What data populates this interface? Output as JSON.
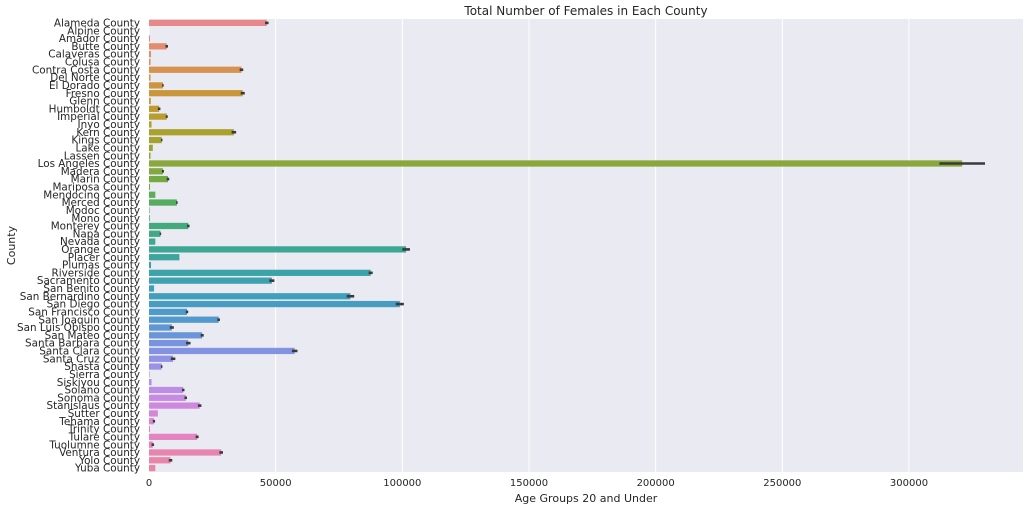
{
  "chart_data": {
    "type": "bar",
    "orientation": "horizontal",
    "title": "Total Number of Females in Each County",
    "xlabel": "Age Groups 20 and Under",
    "ylabel": "County",
    "xlim": [
      0,
      345000
    ],
    "xticks": [
      0,
      50000,
      100000,
      150000,
      200000,
      250000,
      300000
    ],
    "grid": true,
    "legend": "none",
    "categories": [
      "Alameda County",
      "Alpine County",
      "Amador County",
      "Butte County",
      "Calaveras County",
      "Colusa County",
      "Contra Costa County",
      "Del Norte County",
      "El Dorado County",
      "Fresno County",
      "Glenn County",
      "Humboldt County",
      "Imperial County",
      "Inyo County",
      "Kern County",
      "Kings County",
      "Lake County",
      "Lassen County",
      "Los Angeles County",
      "Madera County",
      "Marin County",
      "Mariposa County",
      "Mendocino County",
      "Merced County",
      "Modoc County",
      "Mono County",
      "Monterey County",
      "Napa County",
      "Nevada County",
      "Orange County",
      "Placer County",
      "Plumas County",
      "Riverside County",
      "Sacramento County",
      "San Benito County",
      "San Bernardino County",
      "San Diego County",
      "San Francisco County",
      "San Joaquin County",
      "San Luis Obispo County",
      "San Mateo County",
      "Santa Barbara County",
      "Santa Clara County",
      "Santa Cruz County",
      "Shasta County",
      "Sierra County",
      "Siskiyou County",
      "Solano County",
      "Sonoma County",
      "Stanislaus County",
      "Sutter County",
      "Tehama County",
      "Trinity County",
      "Tulare County",
      "Tuolumne County",
      "Ventura County",
      "Yolo County",
      "Yuba County"
    ],
    "values": [
      46500,
      0,
      400,
      7000,
      800,
      600,
      36500,
      600,
      5500,
      37000,
      700,
      4000,
      7000,
      1000,
      33500,
      5000,
      1500,
      600,
      321000,
      5500,
      7500,
      400,
      2500,
      11000,
      200,
      300,
      15500,
      4500,
      2500,
      101500,
      12000,
      800,
      87500,
      48500,
      2000,
      79500,
      99000,
      15000,
      27500,
      9000,
      21000,
      15500,
      57500,
      9500,
      5000,
      200,
      1000,
      13500,
      14500,
      20000,
      3500,
      2000,
      400,
      19000,
      1500,
      28500,
      8500,
      2500
    ],
    "ci_low": [
      45800,
      0,
      0,
      6500,
      0,
      0,
      35800,
      0,
      5200,
      36200,
      0,
      3500,
      6600,
      0,
      32600,
      4700,
      0,
      0,
      312000,
      5100,
      7000,
      0,
      0,
      10700,
      0,
      0,
      15000,
      4200,
      0,
      100000,
      0,
      0,
      86700,
      47500,
      0,
      78000,
      97400,
      14500,
      27000,
      8200,
      20400,
      14600,
      56400,
      8600,
      4700,
      0,
      0,
      13000,
      14000,
      19300,
      0,
      1500,
      0,
      18400,
      1000,
      27800,
      7800,
      0
    ],
    "ci_high": [
      47200,
      0,
      0,
      7500,
      0,
      0,
      37200,
      0,
      5800,
      37800,
      0,
      4500,
      7400,
      0,
      34400,
      5300,
      0,
      0,
      330000,
      5900,
      8000,
      0,
      0,
      11300,
      0,
      0,
      16000,
      4800,
      0,
      103000,
      0,
      0,
      88300,
      49500,
      0,
      81000,
      100600,
      15500,
      28000,
      9800,
      21600,
      16400,
      58600,
      10400,
      5300,
      0,
      0,
      14000,
      15000,
      20700,
      0,
      2400,
      0,
      19600,
      2000,
      29200,
      9200,
      0
    ],
    "colors": {
      "background": "#eaeaf2",
      "grid": "#ffffff",
      "error_bar": "#3a3a3a"
    }
  }
}
